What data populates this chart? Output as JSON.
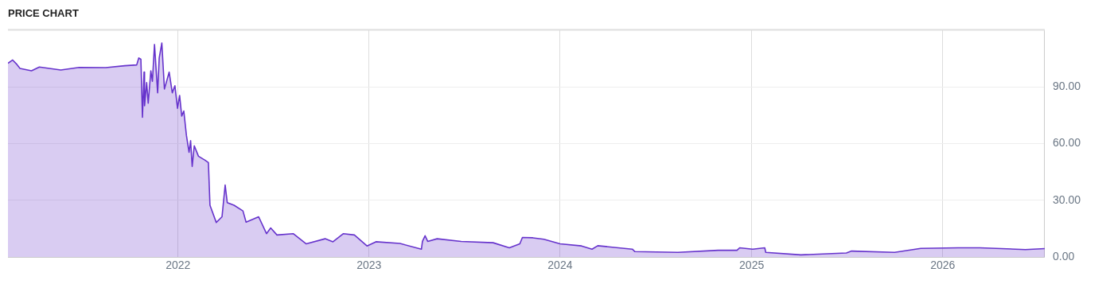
{
  "chart_data": {
    "type": "area",
    "title": "PRICE CHART",
    "x": [
      "2021-02-10",
      "2021-02-19",
      "2021-02-27",
      "2021-03-05",
      "2021-03-27",
      "2021-04-11",
      "2021-05-22",
      "2021-06-26",
      "2021-08-16",
      "2021-09-21",
      "2021-10-14",
      "2021-10-18",
      "2021-10-22",
      "2021-10-25",
      "2021-10-28",
      "2021-10-29",
      "2021-11-02",
      "2021-11-05",
      "2021-11-10",
      "2021-11-13",
      "2021-11-17",
      "2021-11-23",
      "2021-11-26",
      "2021-12-01",
      "2021-12-06",
      "2021-12-15",
      "2021-12-21",
      "2021-12-26",
      "2021-12-31",
      "2022-01-04",
      "2022-01-08",
      "2022-01-12",
      "2022-01-17",
      "2022-01-22",
      "2022-01-25",
      "2022-01-28",
      "2022-02-01",
      "2022-02-09",
      "2022-02-21",
      "2022-02-28",
      "2022-03-03",
      "2022-03-15",
      "2022-03-26",
      "2022-04-01",
      "2022-04-05",
      "2022-04-18",
      "2022-05-05",
      "2022-05-11",
      "2022-06-04",
      "2022-06-19",
      "2022-06-27",
      "2022-07-09",
      "2022-08-09",
      "2022-09-03",
      "2022-10-09",
      "2022-10-24",
      "2022-11-13",
      "2022-12-04",
      "2022-12-28",
      "2023-01-14",
      "2023-03-01",
      "2023-04-11",
      "2023-04-13",
      "2023-04-18",
      "2023-04-23",
      "2023-05-11",
      "2023-06-26",
      "2023-08-26",
      "2023-09-26",
      "2023-10-16",
      "2023-10-21",
      "2023-11-10",
      "2023-12-01",
      "2024-01-01",
      "2024-02-11",
      "2024-03-02",
      "2024-03-13",
      "2024-05-18",
      "2024-05-23",
      "2024-08-13",
      "2024-10-29",
      "2024-12-04",
      "2024-12-09",
      "2025-01-03",
      "2025-01-26",
      "2025-01-28",
      "2025-04-05",
      "2025-07-01",
      "2025-07-11",
      "2025-10-01",
      "2025-11-20",
      "2026-01-31",
      "2026-03-13",
      "2026-06-08",
      "2026-07-15"
    ],
    "series": [
      {
        "color": "#6633cc",
        "values": [
          102.4,
          104.1,
          101.8,
          99.7,
          98.4,
          100.4,
          98.8,
          100.2,
          100.1,
          101.1,
          101.5,
          105.2,
          104.5,
          73.8,
          97.7,
          79.9,
          92.2,
          81.3,
          98.4,
          92.9,
          112.3,
          86.8,
          105.2,
          113.1,
          88.8,
          97.7,
          86.8,
          90.5,
          78.6,
          85.4,
          74.5,
          77.2,
          64.3,
          55.4,
          61.5,
          47.9,
          58.8,
          53.3,
          51.3,
          49.9,
          27.4,
          18.3,
          21.3,
          38.1,
          28.8,
          27.4,
          24.4,
          18.5,
          21.3,
          12.4,
          15.4,
          11.7,
          12.4,
          7.0,
          9.7,
          8.1,
          12.4,
          11.7,
          5.9,
          8.1,
          7.2,
          4.2,
          8.3,
          11.3,
          8.3,
          9.7,
          8.3,
          7.6,
          4.9,
          7.0,
          10.4,
          10.2,
          9.4,
          7.0,
          5.9,
          4.2,
          6.0,
          4.2,
          2.9,
          2.5,
          3.6,
          3.6,
          4.9,
          4.2,
          4.9,
          2.5,
          1.2,
          2.2,
          3.2,
          2.5,
          4.6,
          4.9,
          4.9,
          4.0,
          4.5
        ]
      }
    ],
    "xlim": [
      "2021-02-10",
      "2026-07-15"
    ],
    "xticks": [
      {
        "value": "2022",
        "label": "2022"
      },
      {
        "value": "2023",
        "label": "2023"
      },
      {
        "value": "2024",
        "label": "2024"
      },
      {
        "value": "2025",
        "label": "2025"
      },
      {
        "value": "2026",
        "label": "2026"
      }
    ],
    "ylim": [
      0,
      120
    ],
    "yticks": [
      {
        "value": 0,
        "label": "0.00"
      },
      {
        "value": 30,
        "label": "30.00"
      },
      {
        "value": 60,
        "label": "60.00"
      },
      {
        "value": 90,
        "label": "90.00"
      }
    ],
    "grid": true,
    "legend": false
  }
}
